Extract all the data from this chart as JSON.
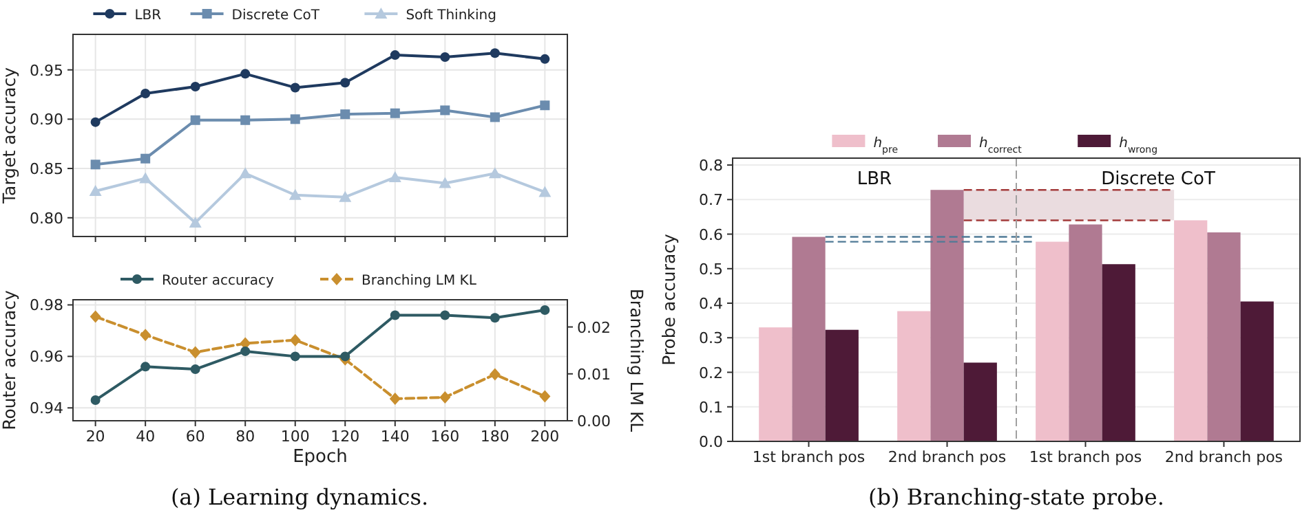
{
  "chart_data": [
    {
      "type": "line",
      "ylabel": "Target accuracy",
      "x": [
        20,
        40,
        60,
        80,
        100,
        120,
        140,
        160,
        180,
        200
      ],
      "xlim": [
        11,
        209
      ],
      "xticks": [
        20,
        40,
        60,
        80,
        100,
        120,
        140,
        160,
        180,
        200
      ],
      "ylim": [
        0.781,
        0.986
      ],
      "yticks": [
        {
          "value": 0.8,
          "label": "0.80"
        },
        {
          "value": 0.85,
          "label": "0.85"
        },
        {
          "value": 0.9,
          "label": "0.90"
        },
        0.95
      ],
      "tick_labels": "y",
      "grid": true,
      "legend": "top",
      "series": [
        {
          "name": "LBR",
          "color": "#1f3a5f",
          "marker": "circle",
          "values": [
            0.897,
            0.926,
            0.933,
            0.946,
            0.932,
            0.937,
            0.965,
            0.963,
            0.967,
            0.961
          ]
        },
        {
          "name": "Discrete CoT",
          "color": "#6b8cae",
          "marker": "square",
          "values": [
            0.854,
            0.86,
            0.899,
            0.899,
            0.9,
            0.905,
            0.906,
            0.909,
            0.902,
            0.914
          ]
        },
        {
          "name": "Soft Thinking",
          "color": "#b5c9de",
          "marker": "triangle",
          "values": [
            0.827,
            0.84,
            0.795,
            0.845,
            0.823,
            0.821,
            0.841,
            0.835,
            0.845,
            0.826
          ]
        }
      ]
    },
    {
      "type": "line",
      "xlabel": "Epoch",
      "ylabel": "Router accuracy",
      "y2label": "Branching LM KL",
      "x": [
        20,
        40,
        60,
        80,
        100,
        120,
        140,
        160,
        180,
        200
      ],
      "xlim": [
        11,
        209
      ],
      "xticks": [
        20,
        40,
        60,
        80,
        100,
        120,
        140,
        160,
        180,
        200
      ],
      "ylim": [
        0.935,
        0.982
      ],
      "yticks": [
        0.94,
        0.96,
        0.98
      ],
      "y2lim": [
        0,
        0.0258
      ],
      "y2ticks": [
        {
          "value": 0,
          "label": "0.00"
        },
        0.01,
        0.02
      ],
      "grid": true,
      "legend": "top",
      "annotations": [
        "(a) Learning dynamics."
      ],
      "series": [
        {
          "name": "Router accuracy",
          "color": "#2e5a63",
          "marker": "circle",
          "line_style": "solid",
          "values": [
            0.943,
            0.956,
            0.955,
            0.962,
            0.96,
            0.96,
            0.976,
            0.976,
            0.975,
            0.978
          ]
        },
        {
          "name": "Branching LM KL",
          "color": "#c98f2e",
          "marker": "diamond",
          "line_style": "dashed",
          "axis": "y2",
          "values": [
            0.0222,
            0.0183,
            0.0146,
            0.0165,
            0.0172,
            0.0131,
            0.0047,
            0.005,
            0.0099,
            0.0052
          ]
        }
      ]
    },
    {
      "type": "bar",
      "ylabel": "Probe accuracy",
      "categories": [
        "1st branch pos",
        "2nd branch pos",
        "1st branch pos",
        "2nd branch pos"
      ],
      "ylim": [
        0,
        0.82
      ],
      "yticks": [
        {
          "value": 0,
          "label": "0.0"
        },
        0.1,
        0.2,
        0.3,
        0.4,
        0.5,
        0.6,
        0.7,
        0.8
      ],
      "grid": "y",
      "legend": "top",
      "annotations": [
        "LBR",
        "Discrete CoT",
        "(b) Branching-state probe."
      ],
      "ref_lines": [
        {
          "axis": "y",
          "value": 0.592,
          "color": "#4f7a96",
          "line_style": "dashed"
        },
        {
          "axis": "y",
          "value": 0.578,
          "color": "#4f7a96",
          "line_style": "dashed"
        },
        {
          "axis": "y",
          "value": 0.728,
          "color": "#a33b3b",
          "line_style": "dashed"
        },
        {
          "axis": "y",
          "value": 0.64,
          "color": "#a33b3b",
          "line_style": "dashed"
        }
      ],
      "bands": [
        {
          "axis": "y",
          "from": 0.64,
          "to": 0.728,
          "color": "#eadcdf"
        }
      ],
      "series": [
        {
          "name": "h$_{pre}$",
          "color": "#efbfcb",
          "values": [
            0.33,
            0.377,
            0.578,
            0.64
          ]
        },
        {
          "name": "h$_{correct}$",
          "color": "#b07a92",
          "values": [
            0.592,
            0.728,
            0.628,
            0.605
          ]
        },
        {
          "name": "h$_{wrong}$",
          "color": "#4e1a37",
          "values": [
            0.323,
            0.228,
            0.513,
            0.405
          ]
        }
      ]
    }
  ]
}
